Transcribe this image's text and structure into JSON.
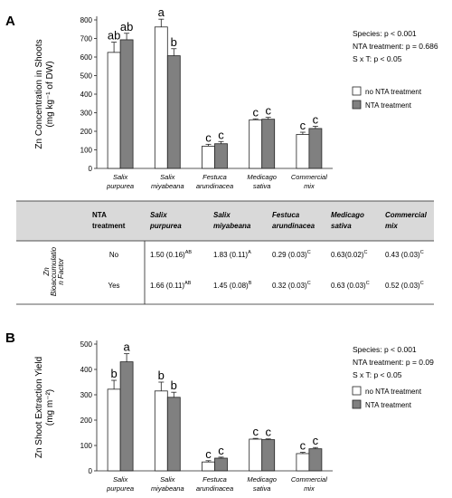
{
  "chart_data": [
    {
      "panel": "A",
      "type": "bar",
      "ylabel": "Zn Concentration in Shoots\n(mg kg⁻¹ of DW)",
      "ylim": [
        0,
        800
      ],
      "yticks": [
        0,
        100,
        200,
        300,
        400,
        500,
        600,
        700,
        800
      ],
      "categories": [
        "Salix\npurpurea",
        "Salix\nmiyabeana",
        "Festuca\narundinacea",
        "Medicago\nsativa",
        "Commercial\nmix"
      ],
      "series": [
        {
          "name": "no NTA treatment",
          "color": "#ffffff",
          "values": [
            625,
            762,
            120,
            262,
            183
          ],
          "errors": [
            55,
            42,
            10,
            5,
            12
          ],
          "letters": [
            "ab",
            "a",
            "c",
            "c",
            "c"
          ]
        },
        {
          "name": "NTA treatment",
          "color": "#808080",
          "values": [
            693,
            607,
            133,
            265,
            215
          ],
          "errors": [
            35,
            38,
            12,
            10,
            12
          ],
          "letters": [
            "ab",
            "b",
            "c",
            "c",
            "c"
          ]
        }
      ],
      "stats": [
        "Species: p < 0.001",
        "NTA treatment: p = 0.686",
        "S x T: p < 0.05"
      ]
    },
    {
      "panel": "B",
      "type": "bar",
      "ylabel": "Zn Shoot Extraction Yield\n(mg m⁻²)",
      "ylim": [
        0,
        500
      ],
      "yticks": [
        0,
        100,
        200,
        300,
        400,
        500
      ],
      "categories": [
        "Salix\npurpurea",
        "Salix\nmiyabeana",
        "Festuca\narundinacea",
        "Medicago\nsativa",
        "Commercial\nmix"
      ],
      "series": [
        {
          "name": "no NTA treatment",
          "color": "#ffffff",
          "values": [
            322,
            315,
            35,
            125,
            68
          ],
          "errors": [
            35,
            35,
            5,
            3,
            5
          ],
          "letters": [
            "b",
            "b",
            "c",
            "c",
            "c"
          ]
        },
        {
          "name": "NTA treatment",
          "color": "#808080",
          "values": [
            430,
            290,
            50,
            123,
            87
          ],
          "errors": [
            32,
            20,
            4,
            3,
            5
          ],
          "letters": [
            "a",
            "b",
            "c",
            "c",
            "c"
          ]
        }
      ],
      "stats": [
        "Species: p < 0.001",
        "NTA treatment: p = 0.09",
        "S x T: p < 0.05"
      ]
    }
  ],
  "table": {
    "row_label": "Zn Bioaccumulatio n Factor",
    "headers": [
      "NTA\ntreatment",
      "Salix\npurpurea",
      "Salix\nmiyabeana",
      "Festuca\narundinacea",
      "Medicago\nsativa",
      "Commercial\nmix"
    ],
    "rows": [
      {
        "treatment": "No",
        "cells": [
          [
            "1.50 (0.16)",
            "AB"
          ],
          [
            "1.83 (0.11)",
            "A"
          ],
          [
            "0.29 (0.03)",
            "C"
          ],
          [
            "0.63(0.02)",
            "C"
          ],
          [
            "0.43 (0.03)",
            "C"
          ]
        ]
      },
      {
        "treatment": "Yes",
        "cells": [
          [
            "1.66 (0.11)",
            "AB"
          ],
          [
            "1.45 (0.08)",
            "B"
          ],
          [
            "0.32 (0.03)",
            "C"
          ],
          [
            "0.63 (0.03)",
            "C"
          ],
          [
            "0.52 (0.03)",
            "C"
          ]
        ]
      }
    ]
  }
}
